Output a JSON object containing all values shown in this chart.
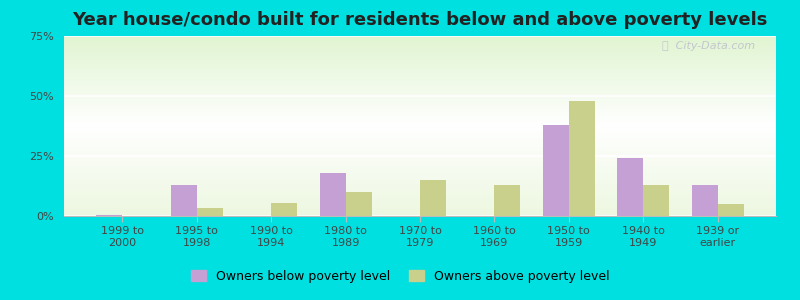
{
  "title": "Year house/condo built for residents below and above poverty levels",
  "categories": [
    "1999 to\n2000",
    "1995 to\n1998",
    "1990 to\n1994",
    "1980 to\n1989",
    "1970 to\n1979",
    "1960 to\n1969",
    "1950 to\n1959",
    "1940 to\n1949",
    "1939 or\nearlier"
  ],
  "below_poverty": [
    0.5,
    13.0,
    0.0,
    18.0,
    0.0,
    0.0,
    38.0,
    24.0,
    13.0
  ],
  "above_poverty": [
    0.0,
    3.5,
    5.5,
    10.0,
    15.0,
    13.0,
    48.0,
    13.0,
    5.0
  ],
  "below_color": "#c4a0d4",
  "above_color": "#c8d08c",
  "outer_bg": "#00e0e0",
  "ylim": [
    0,
    75
  ],
  "yticks": [
    0,
    25,
    50,
    75
  ],
  "ytick_labels": [
    "0%",
    "25%",
    "50%",
    "75%"
  ],
  "legend_below": "Owners below poverty level",
  "legend_above": "Owners above poverty level",
  "title_fontsize": 13,
  "tick_fontsize": 8,
  "legend_fontsize": 9,
  "bar_width": 0.35
}
